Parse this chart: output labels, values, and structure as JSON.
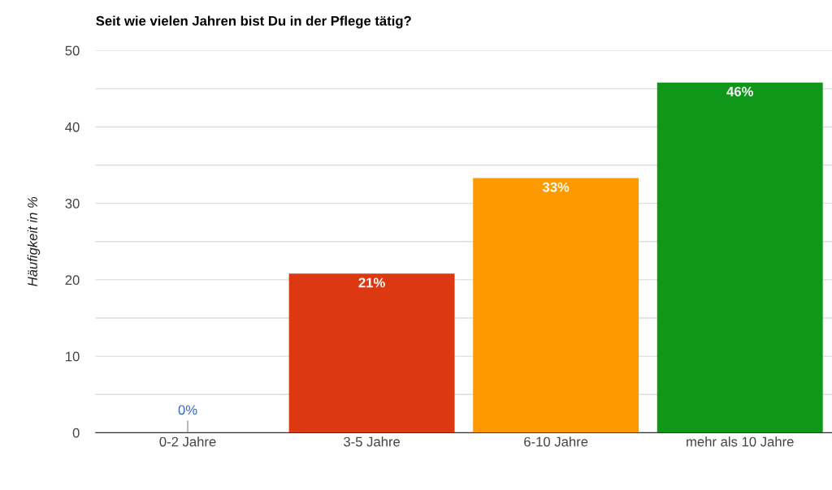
{
  "chart_data": {
    "type": "bar",
    "title": "Seit wie vielen Jahren bist Du in der Pflege tätig?",
    "ylabel": "Häufigkeit in %",
    "categories": [
      "0-2 Jahre",
      "3-5 Jahre",
      "6-10 Jahre",
      "mehr als 10 Jahre"
    ],
    "values": [
      0,
      20.8,
      33.3,
      45.8
    ],
    "colors": [
      "#3366cc",
      "#dc3912",
      "#ff9900",
      "#109618"
    ],
    "value_labels": [
      "0%",
      "21%",
      "33%",
      "46%"
    ],
    "ylim": [
      0,
      50
    ],
    "yticks": [
      0,
      {
        "value": 5,
        "label": null
      },
      10,
      {
        "value": 15,
        "label": null
      },
      20,
      {
        "value": 25,
        "label": null
      },
      30,
      {
        "value": 35,
        "label": null
      },
      40,
      {
        "value": 45,
        "label": null
      },
      50
    ],
    "grid": "y",
    "legend": false
  }
}
